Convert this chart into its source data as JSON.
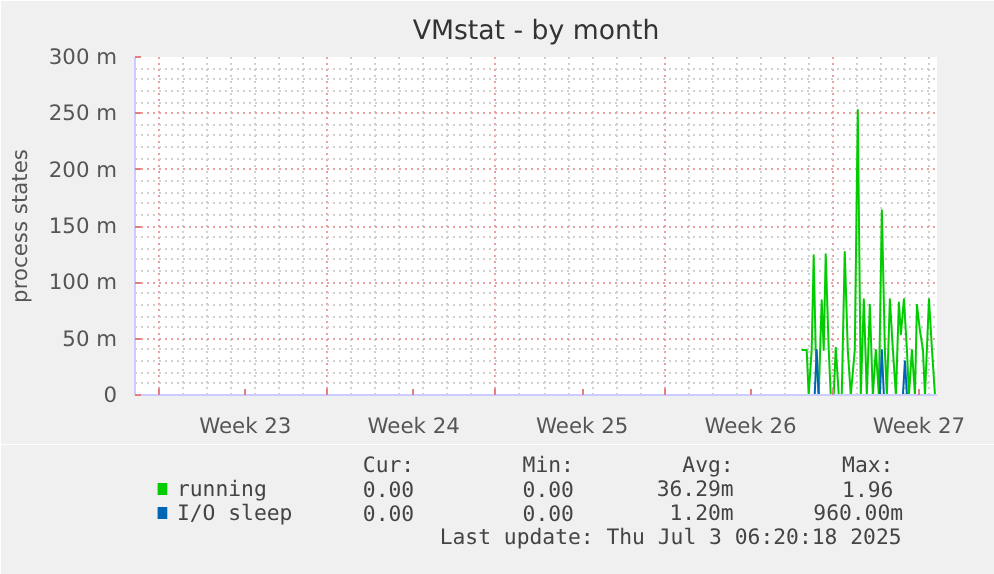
{
  "chart_data": {
    "type": "line",
    "title": "VMstat - by month",
    "ylabel": "process states",
    "xlim": [
      "2025-05-30T22:00",
      "2025-07-03T06:00"
    ],
    "xticks": [
      {
        "value": "2025-05-31T22:00",
        "label": null
      },
      {
        "value": "2025-06-04T12:00",
        "label": "Week 23"
      },
      {
        "value": "2025-06-07T22:00",
        "label": null
      },
      {
        "value": "2025-06-11T12:00",
        "label": "Week 24"
      },
      {
        "value": "2025-06-14T22:00",
        "label": null
      },
      {
        "value": "2025-06-18T12:00",
        "label": "Week 25"
      },
      {
        "value": "2025-06-21T22:00",
        "label": null
      },
      {
        "value": "2025-06-25T12:00",
        "label": "Week 26"
      },
      {
        "value": "2025-06-28T22:00",
        "label": null
      },
      {
        "value": "2025-07-02T12:00",
        "label": "Week 27"
      }
    ],
    "ylim": [
      0,
      300
    ],
    "yticks": [
      0,
      {
        "value": 50,
        "label": "50 m"
      },
      {
        "value": 100,
        "label": "100 m"
      },
      {
        "value": 150,
        "label": "150 m"
      },
      {
        "value": 200,
        "label": "200 m"
      },
      {
        "value": 250,
        "label": "250 m"
      },
      {
        "value": 300,
        "label": "300 m"
      }
    ],
    "grid": true,
    "legend": "bottom",
    "marker": "none",
    "line_style": "solid",
    "series": [
      {
        "name": "running",
        "color": "#00cc00",
        "x": [
          "2025-06-27T15:00",
          "2025-06-27T17:00",
          "2025-06-27T20:00",
          "2025-06-27T22:00",
          "2025-06-28T01:00",
          "2025-06-28T03:00",
          "2025-06-28T05:00",
          "2025-06-28T08:00",
          "2025-06-28T11:00",
          "2025-06-28T13:00",
          "2025-06-28T15:00",
          "2025-06-28T18:00",
          "2025-06-28T20:00",
          "2025-06-28T23:00",
          "2025-06-29T01:00",
          "2025-06-29T04:00",
          "2025-06-29T07:00",
          "2025-06-29T10:00",
          "2025-06-29T13:00",
          "2025-06-29T16:00",
          "2025-06-29T20:00",
          "2025-06-29T23:00",
          "2025-06-30T02:00",
          "2025-06-30T05:00",
          "2025-06-30T08:00",
          "2025-06-30T11:00",
          "2025-06-30T14:00",
          "2025-06-30T17:00",
          "2025-06-30T20:00",
          "2025-06-30T23:00",
          "2025-07-01T02:00",
          "2025-07-01T04:00",
          "2025-07-01T07:00",
          "2025-07-01T10:00",
          "2025-07-01T13:00",
          "2025-07-01T16:00",
          "2025-07-01T18:00",
          "2025-07-01T21:00",
          "2025-07-02T00:00",
          "2025-07-02T02:00",
          "2025-07-02T05:00",
          "2025-07-02T08:00",
          "2025-07-02T10:00",
          "2025-07-02T13:00",
          "2025-07-02T16:00",
          "2025-07-02T18:00",
          "2025-07-02T22:00",
          "2025-07-03T01:00",
          "2025-07-03T04:00"
        ],
        "values": [
          40,
          40,
          40,
          0,
          40,
          124,
          40,
          0,
          84,
          40,
          125,
          40,
          0,
          0,
          42,
          0,
          0,
          127,
          40,
          0,
          40,
          253,
          0,
          85,
          0,
          80,
          0,
          40,
          0,
          164,
          40,
          0,
          85,
          40,
          0,
          82,
          54,
          85,
          40,
          0,
          40,
          0,
          80,
          57,
          40,
          0,
          85,
          40,
          0
        ]
      },
      {
        "name": "I/O sleep",
        "color": "#0066b3",
        "x": [
          "2025-06-27T15:00",
          "2025-06-28T04:00",
          "2025-06-28T06:00",
          "2025-06-28T08:00",
          "2025-06-30T21:00",
          "2025-06-30T23:00",
          "2025-07-01T01:00",
          "2025-07-01T20:00",
          "2025-07-01T22:00",
          "2025-07-02T00:00",
          "2025-07-03T04:00"
        ],
        "values": [
          0,
          0,
          40,
          0,
          0,
          40,
          0,
          0,
          30,
          0,
          0
        ]
      }
    ],
    "annotations": [
      "Cur:",
      "Min:",
      "Avg:",
      "Max:",
      "0.00",
      "0.00",
      "36.29m",
      "1.96",
      "0.00",
      "0.00",
      "1.20m",
      "960.00m",
      "Last update: Thu Jul  3 06:20:18 2025"
    ]
  }
}
